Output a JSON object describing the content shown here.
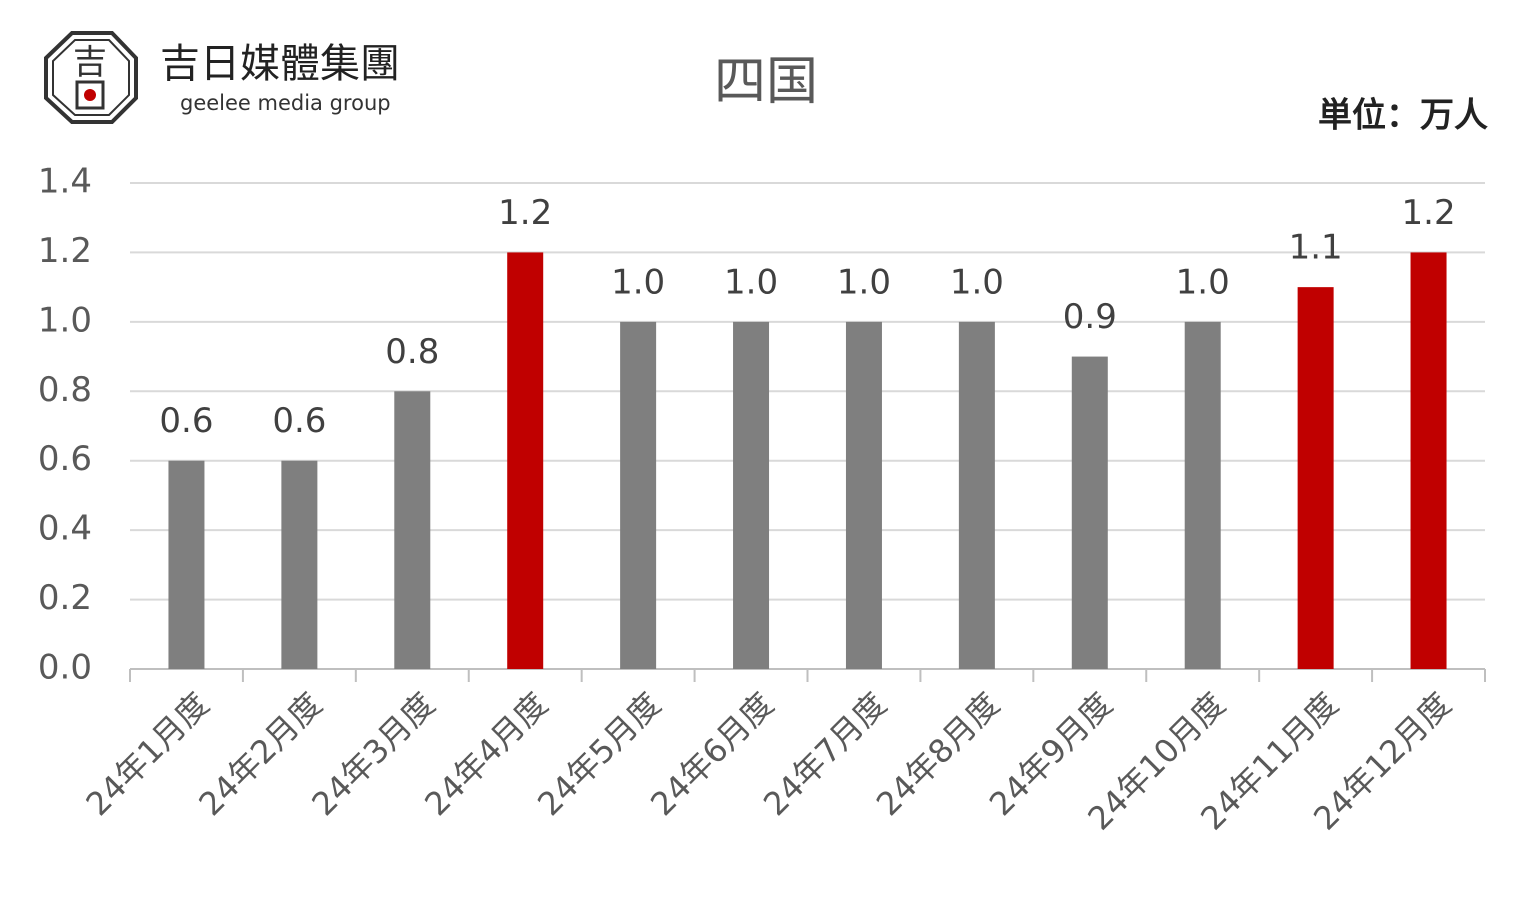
{
  "logo": {
    "mark": "吉",
    "name": "吉日媒體集團",
    "subtitle": "geelee media group"
  },
  "chart_data": {
    "type": "bar",
    "title": "四国",
    "unit": "単位：万人",
    "categories": [
      "24年1月度",
      "24年2月度",
      "24年3月度",
      "24年4月度",
      "24年5月度",
      "24年6月度",
      "24年7月度",
      "24年8月度",
      "24年9月度",
      "24年10月度",
      "24年11月度",
      "24年12月度"
    ],
    "values": [
      0.6,
      0.6,
      0.8,
      1.2,
      1.0,
      1.0,
      1.0,
      1.0,
      0.9,
      1.0,
      1.1,
      1.2
    ],
    "value_labels": [
      "0.6",
      "0.6",
      "0.8",
      "1.2",
      "1.0",
      "1.0",
      "1.0",
      "1.0",
      "0.9",
      "1.0",
      "1.1",
      "1.2"
    ],
    "colors": [
      "#7f7f7f",
      "#7f7f7f",
      "#7f7f7f",
      "#c00000",
      "#7f7f7f",
      "#7f7f7f",
      "#7f7f7f",
      "#7f7f7f",
      "#7f7f7f",
      "#7f7f7f",
      "#c00000",
      "#c00000"
    ],
    "ylim": [
      0,
      1.4
    ],
    "yticks": [
      {
        "value": 0,
        "label": "0.0"
      },
      0.2,
      0.4,
      0.6,
      0.8,
      {
        "value": 1,
        "label": "1.0"
      },
      1.2,
      1.4
    ],
    "grid": true
  }
}
